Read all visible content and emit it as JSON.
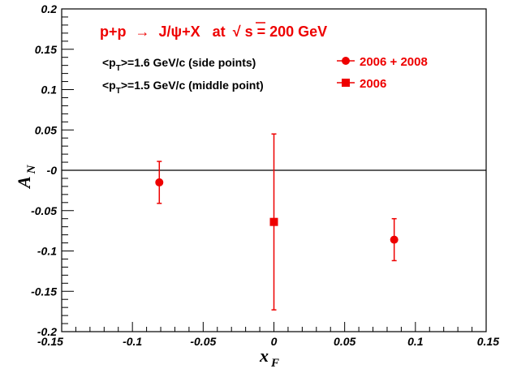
{
  "chart_data": {
    "type": "scatter",
    "title": {
      "process": "p+p",
      "arrow": "→",
      "final_state": "J/ψ+X",
      "at": "at",
      "sqrt_symbol": "√",
      "energy": "s = 200 GeV"
    },
    "xlabel": {
      "main": "x",
      "sub": "F"
    },
    "ylabel": {
      "main": "A",
      "sub": "N"
    },
    "xlim": [
      -0.15,
      0.15
    ],
    "ylim": [
      -0.2,
      0.2
    ],
    "x_ticks": [
      "-0.15",
      "-0.1",
      "-0.05",
      "0",
      "0.05",
      "0.1",
      "0.15"
    ],
    "x_tick_values": [
      -0.15,
      -0.1,
      -0.05,
      0,
      0.05,
      0.1,
      0.15
    ],
    "y_ticks": [
      "0.2",
      "0.15",
      "0.1",
      "0.05",
      "-0",
      "-0.05",
      "-0.1",
      "-0.15",
      "-0.2"
    ],
    "y_tick_values": [
      0.2,
      0.15,
      0.1,
      0.05,
      0,
      -0.05,
      -0.1,
      -0.15,
      -0.2
    ],
    "reference_line_y": 0,
    "annotations": [
      {
        "pre": "<p",
        "sub": "T",
        "post": ">=1.6 GeV/c (side points)"
      },
      {
        "pre": "<p",
        "sub": "T",
        "post": ">=1.5 GeV/c (middle point)"
      }
    ],
    "series": [
      {
        "name": "2006 + 2008",
        "marker": "circle",
        "color": "#ee0000",
        "points": [
          {
            "x": -0.081,
            "y": -0.015,
            "err": 0.026
          },
          {
            "x": 0.085,
            "y": -0.086,
            "err": 0.026
          }
        ]
      },
      {
        "name": "2006",
        "marker": "square",
        "color": "#ee0000",
        "points": [
          {
            "x": 0.0,
            "y": -0.064,
            "err": 0.109
          }
        ]
      }
    ],
    "grid": false,
    "legend_position": "top-right"
  }
}
